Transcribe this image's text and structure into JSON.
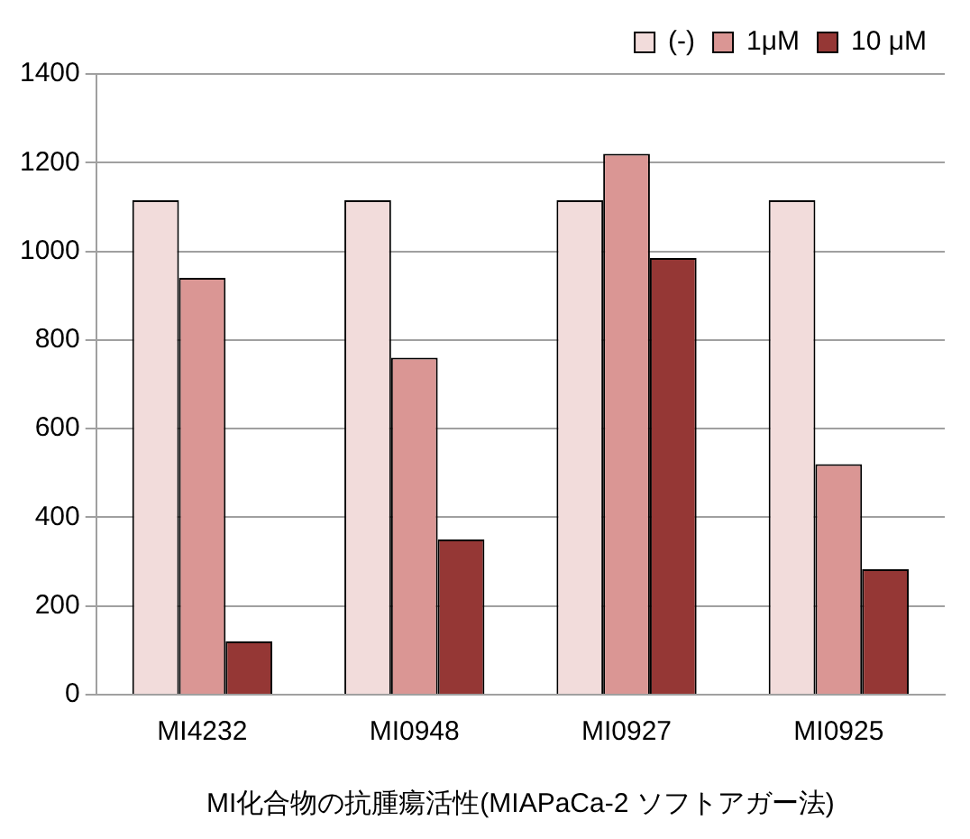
{
  "chart_data": {
    "type": "bar",
    "xlabel": "MI化合物の抗腫瘍活性(MIAPaCa-2 ソフトアガー法)",
    "categories": [
      "MI4232",
      "MI0948",
      "MI0927",
      "MI0925"
    ],
    "series": [
      {
        "name": "(-)",
        "color": "#f2dcdb",
        "values": [
          1115,
          1115,
          1115,
          1115
        ]
      },
      {
        "name": "1μM",
        "color": "#da9694",
        "values": [
          940,
          760,
          1220,
          520
        ]
      },
      {
        "name": "10 μM",
        "color": "#953735",
        "values": [
          120,
          350,
          985,
          283
        ]
      }
    ],
    "ylim": [
      0,
      1400
    ],
    "yticks": [
      0,
      200,
      400,
      600,
      800,
      1000,
      1200,
      1400
    ],
    "grid": "y",
    "legend": "top right"
  }
}
